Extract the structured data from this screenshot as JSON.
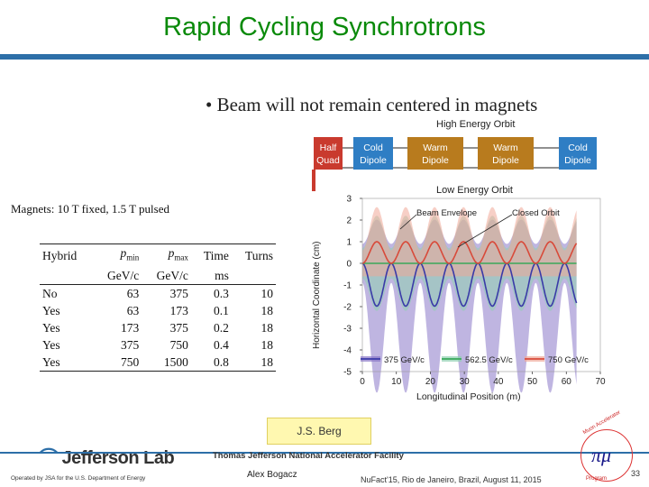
{
  "slide": {
    "title": "Rapid Cycling Synchrotrons",
    "bullet": "• Beam will not remain centered in magnets",
    "magnets_note": "Magnets: 10 T fixed, 1.5 T pulsed"
  },
  "magnet_strip": {
    "high_label": "High Energy Orbit",
    "low_label": "Low Energy Orbit",
    "blocks": [
      {
        "line1": "Half",
        "line2": "Quad",
        "color": "#c93a2e"
      },
      {
        "line1": "Cold",
        "line2": "Dipole",
        "color": "#2f7ec4"
      },
      {
        "line1": "Warm",
        "line2": "Dipole",
        "color": "#b87b1e"
      },
      {
        "line1": "Warm",
        "line2": "Dipole",
        "color": "#b87b1e"
      },
      {
        "line1": "Cold",
        "line2": "Dipole",
        "color": "#2f7ec4"
      }
    ]
  },
  "table": {
    "headers_row1": [
      "Hybrid",
      "p",
      "p",
      "Time",
      "Turns"
    ],
    "subscripts": [
      "min",
      "max"
    ],
    "headers_row2": [
      "",
      "GeV/c",
      "GeV/c",
      "ms",
      ""
    ],
    "rows": [
      [
        "No",
        "63",
        "375",
        "0.3",
        "10"
      ],
      [
        "Yes",
        "63",
        "173",
        "0.1",
        "18"
      ],
      [
        "Yes",
        "173",
        "375",
        "0.2",
        "18"
      ],
      [
        "Yes",
        "375",
        "750",
        "0.4",
        "18"
      ],
      [
        "Yes",
        "750",
        "1500",
        "0.8",
        "18"
      ]
    ]
  },
  "chart_data": {
    "type": "area",
    "title": "",
    "xlabel": "Longitudinal Position (m)",
    "ylabel": "Horizontal Coordinate (cm)",
    "xlim": [
      0,
      70
    ],
    "ylim": [
      -5,
      3
    ],
    "xticks": [
      "0",
      "10",
      "20",
      "30",
      "40",
      "50",
      "60",
      "70"
    ],
    "yticks": [
      "3",
      "2",
      "1",
      "0",
      "-1",
      "-2",
      "-3",
      "-4",
      "-5"
    ],
    "legend_position": "bottom",
    "annotations": [
      "Beam Envelope",
      "Closed Orbit"
    ],
    "period_m": 8.5,
    "series": [
      {
        "name": "375 GeV/c",
        "color": "#3a3aa8",
        "fill": "#8a78c8",
        "orbit_amplitude_cm": -1.1,
        "envelope_halfwidth_cm": [
          0.9,
          4.0
        ]
      },
      {
        "name": "562.5 GeV/c",
        "color": "#3aa85a",
        "fill": "#8fd0b0",
        "orbit_amplitude_cm": 0.0,
        "envelope_halfwidth_cm": [
          0.7,
          2.2
        ]
      },
      {
        "name": "750 GeV/c",
        "color": "#d84a3a",
        "fill": "#f0a898",
        "orbit_amplitude_cm": 1.0,
        "envelope_halfwidth_cm": [
          0.6,
          1.6
        ]
      }
    ]
  },
  "badge": "J.S. Berg",
  "footer": {
    "lab": "Jefferson Lab",
    "facility": "Thomas Jefferson National Accelerator Facility",
    "operated": "Operated by JSA for the U.S. Department of Energy",
    "presenter": "Alex Bogacz",
    "conference": "NuFact'15, Rio de Janeiro, Brazil, August 11, 2015",
    "page": "33",
    "logo_top": "Muon Accelerator",
    "logo_bottom": "Program"
  }
}
